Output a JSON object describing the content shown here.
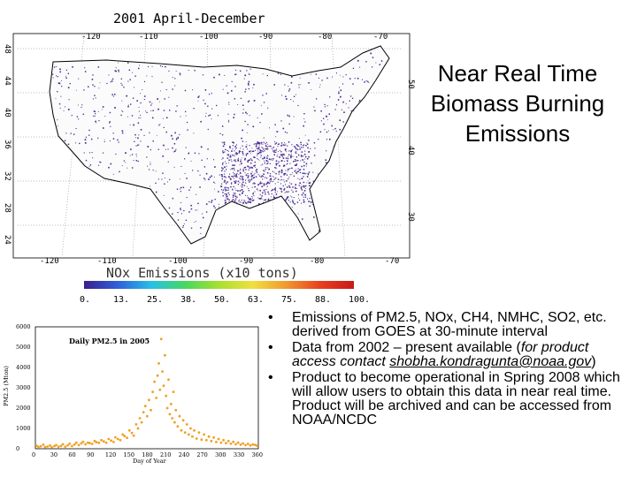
{
  "slide": {
    "title_lines": [
      "Near Real Time",
      "Biomass Burning",
      "Emissions"
    ],
    "bullets": [
      {
        "text": "Emissions of PM2.5, NOx, CH4, NMHC, SO2, etc. derived from GOES at 30-minute interval"
      },
      {
        "text_before": "Data from 2002 – present available (",
        "italic": "for product access contact ",
        "email": "shobha.kondragunta@noaa.gov",
        "text_after": ")"
      },
      {
        "text": "Product to become operational in Spring 2008 which will allow users to obtain this data in near real time.  Product will be archived and can be accessed from NOAA/NCDC"
      }
    ]
  },
  "map": {
    "title": "2001 April-December",
    "lon_labels": [
      "-120",
      "-110",
      "-100",
      "-90",
      "-80",
      "-70"
    ],
    "lat_labels_left": [
      "48",
      "44",
      "40",
      "36",
      "32",
      "28",
      "24"
    ],
    "lat_labels_right": [
      "50",
      "40",
      "30"
    ],
    "colorbar_title": "NOx Emissions (x10 tons)",
    "colorbar_ticks": [
      "0.",
      "13.",
      "25.",
      "38.",
      "50.",
      "63.",
      "75.",
      "88.",
      "100."
    ],
    "colorbar_colors": [
      "#3a1e8c",
      "#3060d8",
      "#28c0e8",
      "#48d860",
      "#a8e030",
      "#f0e040",
      "#f09830",
      "#e84020",
      "#c81818"
    ],
    "point_color": "#4b2a90"
  },
  "chart_data": {
    "type": "scatter",
    "title": "Daily PM2.5 in 2005",
    "xlabel": "Day of Year",
    "ylabel": "PM2.5 (Mton)",
    "xlim": [
      0,
      365
    ],
    "ylim": [
      0,
      6000
    ],
    "xticks": [
      0,
      30,
      60,
      90,
      120,
      150,
      180,
      210,
      240,
      270,
      300,
      330,
      360
    ],
    "yticks": [
      0,
      1000,
      2000,
      3000,
      4000,
      5000,
      6000
    ],
    "color": "#f0a020",
    "series": [
      {
        "name": "Daily PM2.5",
        "x": [
          2,
          5,
          9,
          13,
          16,
          20,
          24,
          27,
          31,
          34,
          38,
          42,
          45,
          49,
          53,
          56,
          60,
          64,
          67,
          71,
          75,
          78,
          82,
          86,
          89,
          93,
          97,
          100,
          104,
          108,
          112,
          116,
          120,
          124,
          128,
          131,
          135,
          139,
          143,
          146,
          150,
          154,
          158,
          161,
          165,
          168,
          171,
          174,
          177,
          180,
          183,
          186,
          189,
          192,
          195,
          198,
          200,
          202,
          204,
          206,
          208,
          210,
          212,
          214,
          216,
          218,
          220,
          222,
          224,
          226,
          228,
          230,
          233,
          236,
          239,
          242,
          245,
          248,
          251,
          254,
          257,
          260,
          264,
          268,
          272,
          276,
          280,
          284,
          288,
          292,
          296,
          300,
          304,
          308,
          312,
          316,
          320,
          324,
          328,
          332,
          336,
          340,
          344,
          348,
          352,
          356,
          360,
          363
        ],
        "y": [
          150,
          90,
          120,
          200,
          80,
          110,
          160,
          70,
          130,
          180,
          95,
          140,
          220,
          100,
          170,
          250,
          130,
          210,
          300,
          180,
          260,
          340,
          220,
          300,
          280,
          240,
          380,
          320,
          290,
          420,
          360,
          300,
          480,
          400,
          330,
          560,
          480,
          420,
          700,
          620,
          540,
          900,
          780,
          650,
          1200,
          1000,
          1500,
          1300,
          1800,
          2100,
          1600,
          2400,
          1900,
          2800,
          3300,
          2500,
          3600,
          4200,
          2900,
          5400,
          3800,
          3100,
          4600,
          2600,
          2000,
          3400,
          1700,
          2200,
          1500,
          2800,
          1300,
          1900,
          1100,
          1600,
          900,
          1400,
          800,
          1200,
          700,
          1000,
          600,
          900,
          500,
          800,
          450,
          700,
          420,
          600,
          380,
          550,
          330,
          480,
          300,
          420,
          280,
          380,
          250,
          340,
          220,
          300,
          200,
          260,
          180,
          240,
          160,
          210,
          190,
          150
        ]
      }
    ]
  }
}
